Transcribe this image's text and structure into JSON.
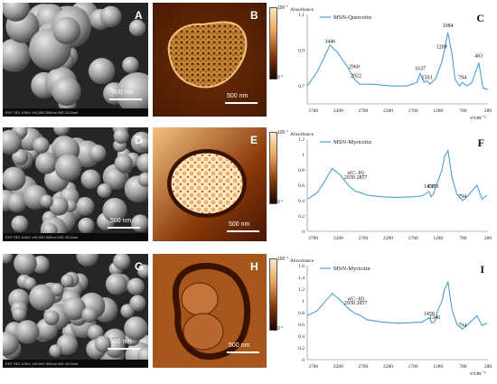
{
  "sem_panels": [
    {
      "label": "A",
      "scale": "500 nm",
      "footer": "EHT    SE1    5.0kV    ×50,000    500nm    WD 10.0mm"
    },
    {
      "label": "D",
      "scale": "500 nm",
      "footer": "EHT    SE1    5.0kV    ×50,000    500nm    WD 10.0mm"
    },
    {
      "label": "G",
      "scale": "500 nm",
      "footer": "EHT    SE1    5.0kV    ×50,000    500nm    WD 10.0mm"
    }
  ],
  "afm_panels": [
    {
      "label": "B",
      "scale": "500 nm",
      "cbar_top": "100 °",
      "cbar_bottom": "0 °",
      "cbar_ticks": []
    },
    {
      "label": "E",
      "scale": "500 nm",
      "cbar_top": "100 °",
      "cbar_bottom": "0 °",
      "cbar_ticks": []
    },
    {
      "label": "H",
      "scale": "500 nm",
      "cbar_top": "100 °",
      "cbar_bottom": "0 °",
      "cbar_ticks": []
    }
  ],
  "colors": {
    "spectrum": "#4a9fd0",
    "afm_dark": "#3a1200",
    "afm_light": "#f0b66a",
    "sem_bg": "#2b2b2b"
  },
  "chart_data": [
    {
      "type": "line",
      "label": "C",
      "legend": "MSN-Quercetin",
      "ylabel": "Absorbance",
      "xlabel": "ν/cm⁻¹",
      "xlim": [
        3900,
        280
      ],
      "ylim": [
        0.6,
        1.1
      ],
      "yticks": [
        "0.7",
        "0.9",
        "1.1"
      ],
      "xticks": [
        "3780",
        "3280",
        "2780",
        "2280",
        "1780",
        "1280",
        "780",
        "280"
      ],
      "x": [
        3900,
        3700,
        3560,
        3446,
        3300,
        3100,
        2960,
        2922,
        2850,
        2600,
        2200,
        1900,
        1700,
        1637,
        1560,
        1503,
        1450,
        1330,
        1209,
        1150,
        1084,
        1000,
        940,
        850,
        794,
        700,
        600,
        463,
        380,
        280
      ],
      "y": [
        0.7,
        0.78,
        0.86,
        0.93,
        0.89,
        0.81,
        0.74,
        0.73,
        0.71,
        0.71,
        0.7,
        0.7,
        0.72,
        0.77,
        0.72,
        0.73,
        0.71,
        0.74,
        0.83,
        0.9,
        1.0,
        0.88,
        0.74,
        0.7,
        0.72,
        0.7,
        0.72,
        0.83,
        0.69,
        0.68
      ],
      "annotations": [
        {
          "text": "3446",
          "x": 3446,
          "y": 0.93
        },
        {
          "text": "2960",
          "x": 2960,
          "y": 0.79
        },
        {
          "text": "2922",
          "x": 2922,
          "y": 0.74
        },
        {
          "text": "1637",
          "x": 1637,
          "y": 0.78
        },
        {
          "text": "1503",
          "x": 1503,
          "y": 0.73
        },
        {
          "text": "1209",
          "x": 1209,
          "y": 0.9
        },
        {
          "text": "1084",
          "x": 1084,
          "y": 1.02
        },
        {
          "text": "794",
          "x": 794,
          "y": 0.73
        },
        {
          "text": "463",
          "x": 463,
          "y": 0.85
        }
      ]
    },
    {
      "type": "line",
      "label": "F",
      "legend": "MSN-Myricetin",
      "ylabel": "Absorbance",
      "xlabel": "",
      "xlim": [
        3900,
        280
      ],
      "ylim": [
        0,
        1.2
      ],
      "yticks": [
        "0",
        "0.2",
        "0.4",
        "0.6",
        "0.8",
        "1",
        "1.2"
      ],
      "xticks": [
        "3780",
        "3280",
        "2780",
        "2280",
        "1780",
        "1280",
        "780",
        "280"
      ],
      "x": [
        3900,
        3700,
        3550,
        3400,
        3250,
        3050,
        2930,
        2857,
        2700,
        2400,
        2100,
        1800,
        1600,
        1458,
        1420,
        1379,
        1300,
        1200,
        1150,
        1080,
        1000,
        900,
        794,
        700,
        500,
        400,
        300
      ],
      "y": [
        0.42,
        0.5,
        0.65,
        0.82,
        0.74,
        0.58,
        0.52,
        0.51,
        0.47,
        0.45,
        0.44,
        0.45,
        0.46,
        0.52,
        0.45,
        0.48,
        0.62,
        0.8,
        0.97,
        1.05,
        0.7,
        0.48,
        0.4,
        0.45,
        0.6,
        0.42,
        0.47
      ],
      "annotations": [
        {
          "text": "ν(C−H)",
          "x": 2930,
          "y": 0.72
        },
        {
          "text": "2930 2857",
          "x": 2930,
          "y": 0.66
        },
        {
          "text": "1458",
          "x": 1458,
          "y": 0.54
        },
        {
          "text": "1379",
          "x": 1379,
          "y": 0.54
        },
        {
          "text": "794",
          "x": 794,
          "y": 0.41
        }
      ]
    },
    {
      "type": "line",
      "label": "I",
      "legend": "MSN-Myricitin",
      "ylabel": "Absorbance",
      "xlabel": "ν/cm⁻¹",
      "xlim": [
        3900,
        280
      ],
      "ylim": [
        0,
        1.6
      ],
      "yticks": [
        "0",
        "0.2",
        "0.4",
        "0.6",
        "0.8",
        "1",
        "1.2",
        "1.4",
        "1.6"
      ],
      "xticks": [
        "3780",
        "3280",
        "2780",
        "2280",
        "1780",
        "1280",
        "780",
        "280"
      ],
      "x": [
        3900,
        3700,
        3550,
        3400,
        3250,
        3050,
        2930,
        2857,
        2700,
        2400,
        2100,
        1800,
        1600,
        1458,
        1400,
        1346,
        1300,
        1200,
        1150,
        1080,
        1000,
        900,
        794,
        700,
        500,
        400,
        300
      ],
      "y": [
        0.75,
        0.83,
        0.98,
        1.13,
        1.02,
        0.85,
        0.78,
        0.76,
        0.68,
        0.64,
        0.62,
        0.63,
        0.64,
        0.71,
        0.62,
        0.65,
        0.8,
        1.0,
        1.2,
        1.32,
        0.85,
        0.6,
        0.52,
        0.58,
        0.75,
        0.58,
        0.62
      ],
      "annotations": [
        {
          "text": "ν(C−H)",
          "x": 2930,
          "y": 0.98
        },
        {
          "text": "2930 2857",
          "x": 2930,
          "y": 0.91
        },
        {
          "text": "1458",
          "x": 1458,
          "y": 0.72
        },
        {
          "text": "1346",
          "x": 1346,
          "y": 0.66
        },
        {
          "text": "794",
          "x": 794,
          "y": 0.53
        }
      ]
    }
  ]
}
